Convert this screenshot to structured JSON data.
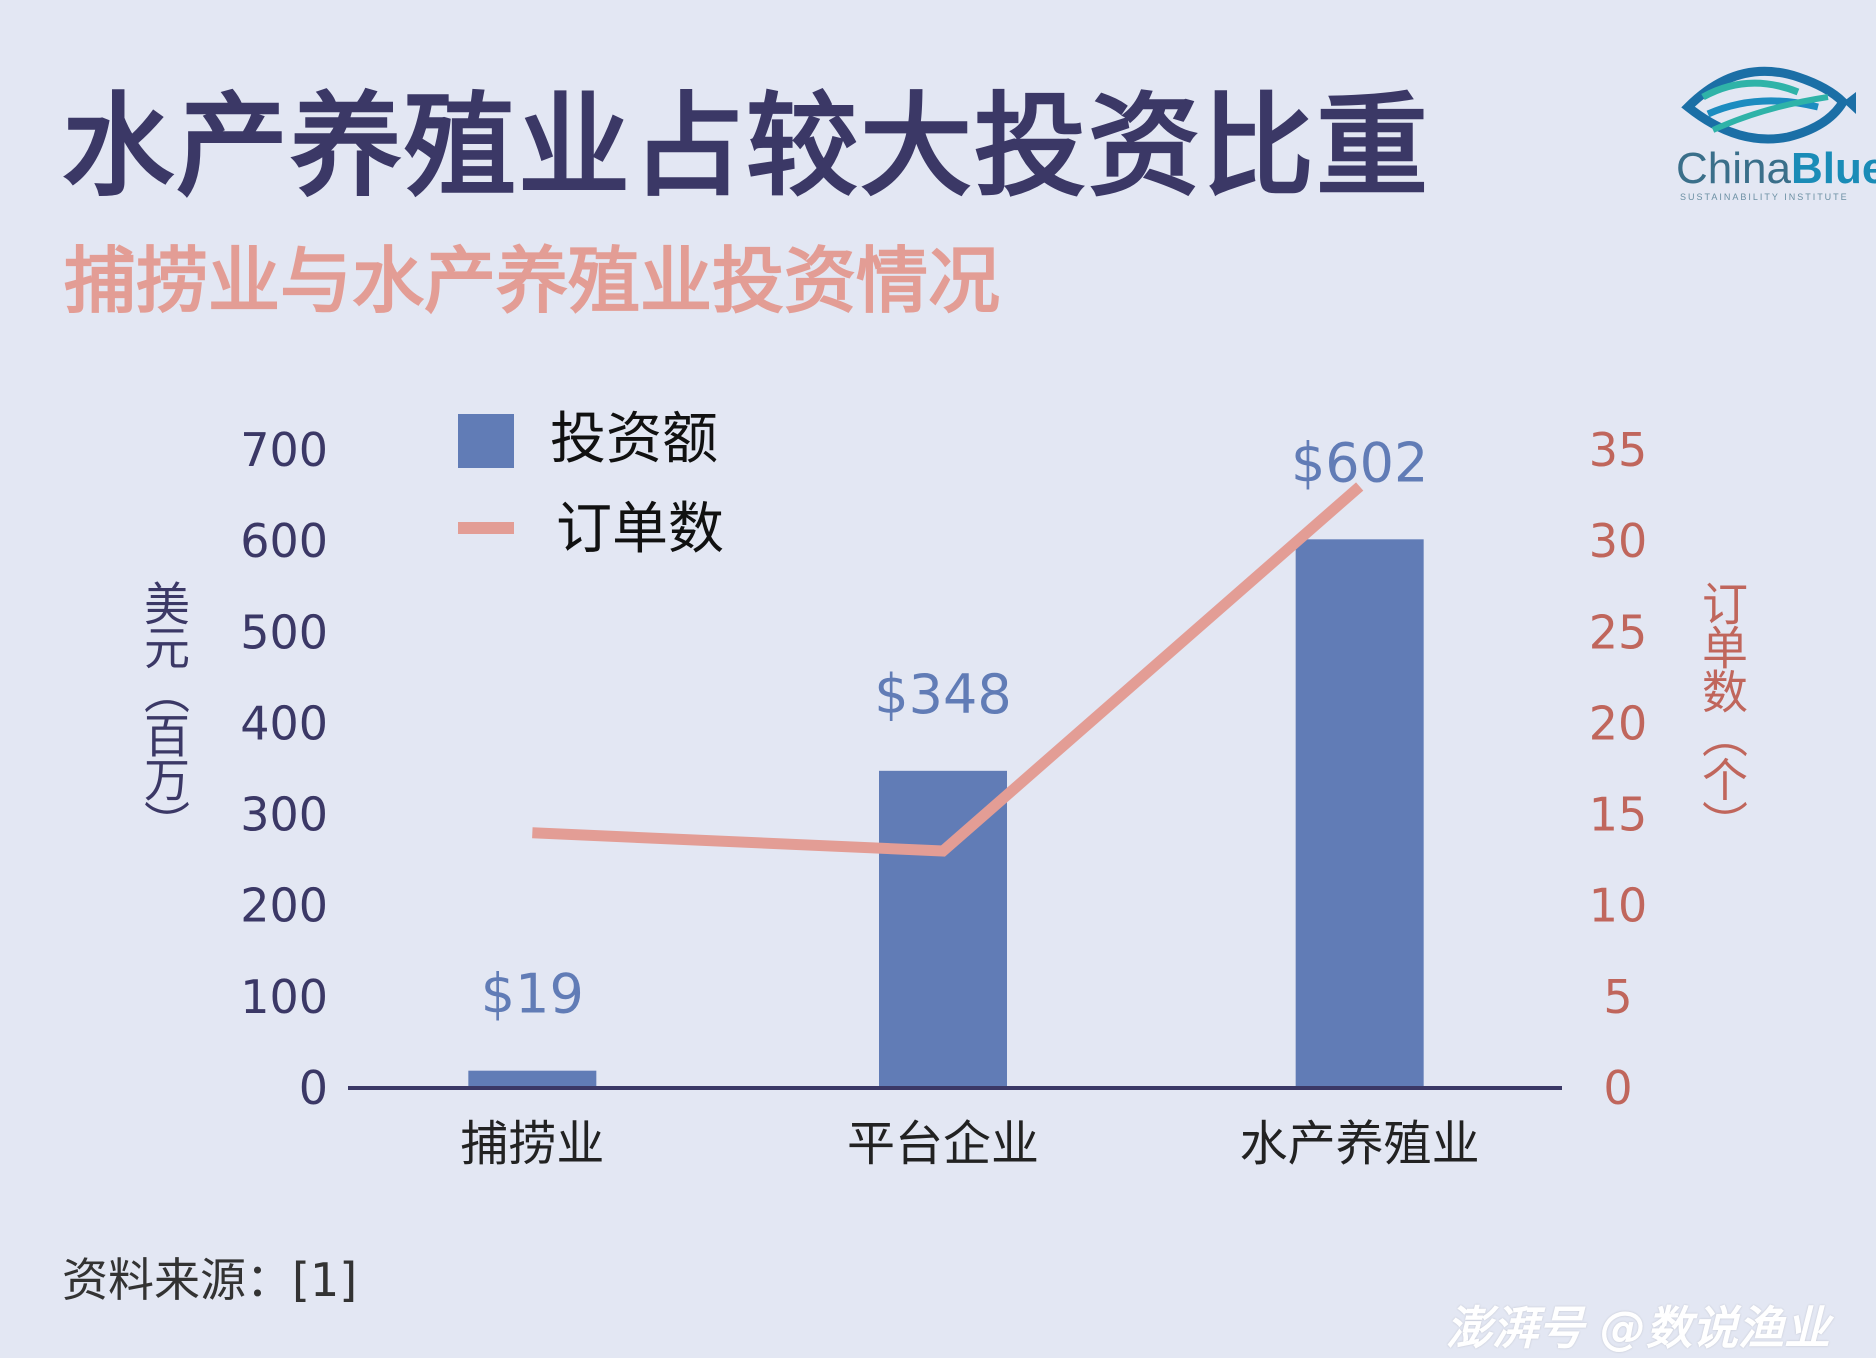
{
  "header": {
    "title": "水产养殖业占较大投资比重",
    "subtitle": "捕捞业与水产养殖业投资情况"
  },
  "logo": {
    "name_light": "China",
    "name_bold": "Blue",
    "tagline": "SUSTAINABILITY INSTITUTE",
    "icon": "fish-logo-icon"
  },
  "colors": {
    "bar": "#617cb6",
    "line": "#e39d95",
    "title": "#3b3866",
    "right_axis": "#c0665c"
  },
  "chart_data": {
    "type": "bar",
    "categories": [
      "捕捞业",
      "平台企业",
      "水产养殖业"
    ],
    "series": [
      {
        "name": "投资额",
        "type": "bar",
        "axis": "left",
        "values": [
          19,
          348,
          602
        ],
        "labels": [
          "$19",
          "$348",
          "$602"
        ]
      },
      {
        "name": "订单数",
        "type": "line",
        "axis": "right",
        "values": [
          14,
          13,
          33
        ]
      }
    ],
    "y_left": {
      "label": "美元（百万）",
      "ylim": [
        0,
        700
      ],
      "ticks": [
        "0",
        "100",
        "200",
        "300",
        "400",
        "500",
        "600",
        "700"
      ]
    },
    "y_right": {
      "label": "订单数（个）",
      "ylim": [
        0,
        35
      ],
      "ticks": [
        "0",
        "5",
        "10",
        "15",
        "20",
        "25",
        "30",
        "35"
      ]
    },
    "legend": {
      "position": "top-left"
    },
    "grid": false
  },
  "footer": {
    "source": "资料来源：[1]",
    "watermark": "澎湃号 @数说渔业"
  }
}
